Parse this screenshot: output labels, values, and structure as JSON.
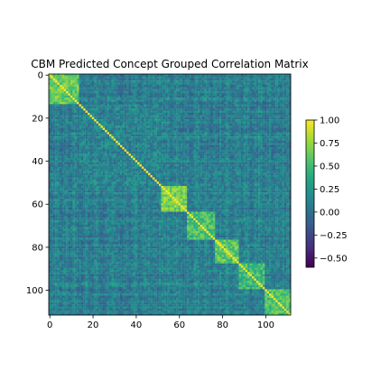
{
  "chart_data": {
    "type": "heatmap",
    "title": "CBM Predicted Concept Grouped Correlation Matrix",
    "xlabel": "",
    "ylabel": "",
    "n": 112,
    "x_ticks": [
      0,
      20,
      40,
      60,
      80,
      100
    ],
    "y_ticks": [
      0,
      20,
      40,
      60,
      80,
      100
    ],
    "xlim": [
      -0.5,
      111.5
    ],
    "ylim": [
      111.5,
      -0.5
    ],
    "colormap": "viridis",
    "color_range": [
      -0.6,
      1.0
    ],
    "colorbar_ticks": [
      "1.00",
      "0.75",
      "0.50",
      "0.25",
      "0.00",
      "−0.25",
      "−0.50"
    ],
    "colorbar_tick_values": [
      1.0,
      0.75,
      0.5,
      0.25,
      0.0,
      -0.25,
      -0.5
    ],
    "diagonal_value": 1.0,
    "groups": [
      {
        "start": 0,
        "end": 13,
        "within_correlation": 0.62
      },
      {
        "start": 14,
        "end": 51,
        "within_correlation": 0.12
      },
      {
        "start": 52,
        "end": 63,
        "within_correlation": 0.68
      },
      {
        "start": 64,
        "end": 76,
        "within_correlation": 0.52
      },
      {
        "start": 77,
        "end": 87,
        "within_correlation": 0.6
      },
      {
        "start": 88,
        "end": 99,
        "within_correlation": 0.5
      },
      {
        "start": 100,
        "end": 111,
        "within_correlation": 0.55
      }
    ],
    "background_correlation": 0.08
  }
}
